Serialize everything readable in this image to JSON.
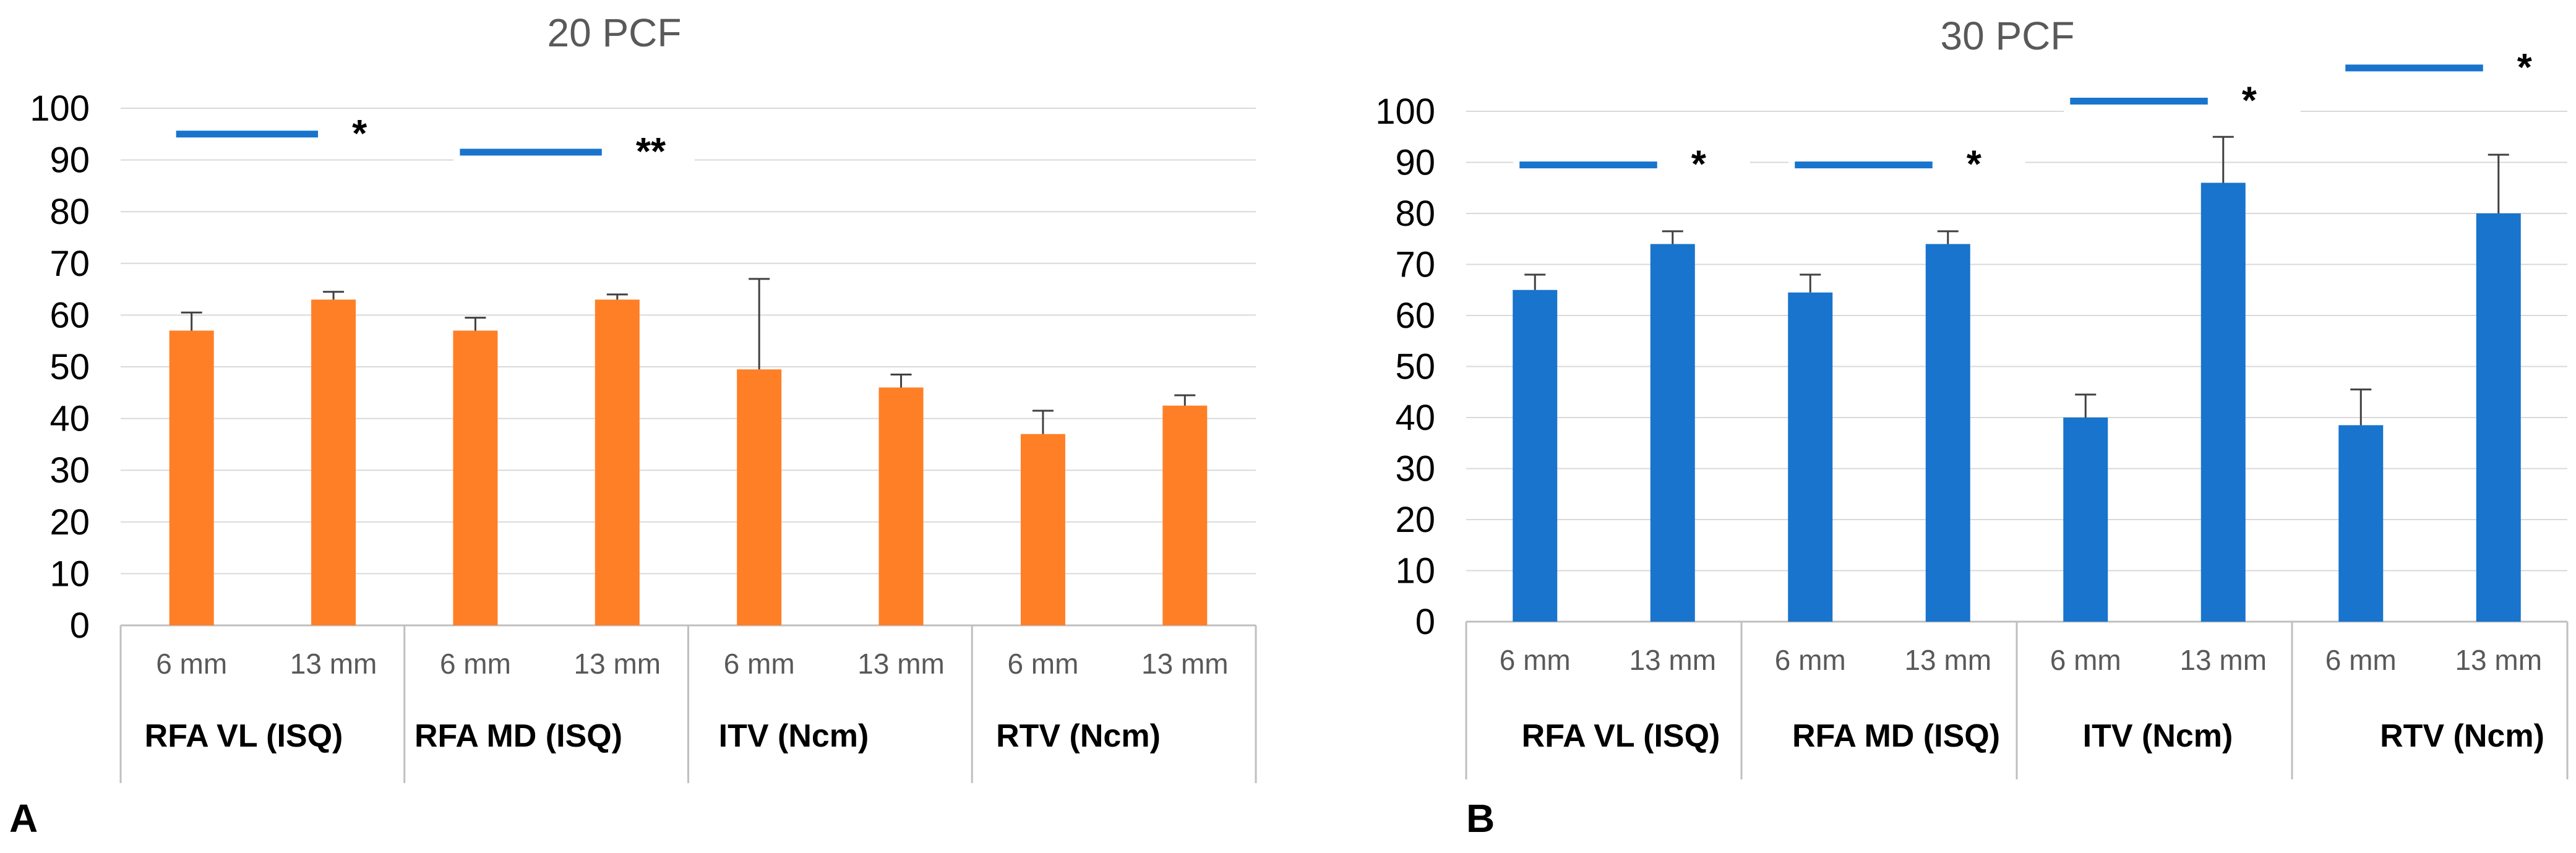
{
  "chart_data": [
    {
      "type": "bar",
      "title": "20 PCF",
      "panel_label": "A",
      "color": "#FF7F27",
      "ylim": [
        0,
        100
      ],
      "yticks": [
        "0",
        "10",
        "20",
        "30",
        "40",
        "50",
        "60",
        "70",
        "80",
        "90",
        "100"
      ],
      "categories": [
        "6 mm",
        "13 mm",
        "6 mm",
        "13 mm",
        "6 mm",
        "13 mm",
        "6 mm",
        "13 mm"
      ],
      "groups": [
        "RFA VL (ISQ)",
        "RFA MD (ISQ)",
        "ITV (Ncm)",
        "RTV (Ncm)"
      ],
      "values": [
        57,
        63,
        57,
        63,
        49.5,
        46,
        37,
        42.5
      ],
      "errors": [
        3.5,
        1.5,
        2.5,
        1,
        17.5,
        2.5,
        4.5,
        2
      ],
      "significance": [
        {
          "group": 0,
          "label": "*",
          "level": 95
        },
        {
          "group": 1,
          "label": "**",
          "level": 91.5
        }
      ]
    },
    {
      "type": "bar",
      "title": "30 PCF",
      "panel_label": "B",
      "color": "#1874CD",
      "ylim": [
        0,
        100
      ],
      "yticks": [
        "0",
        "10",
        "20",
        "30",
        "40",
        "50",
        "60",
        "70",
        "80",
        "90",
        "100"
      ],
      "categories": [
        "6 mm",
        "13 mm",
        "6 mm",
        "13 mm",
        "6 mm",
        "13 mm",
        "6 mm",
        "13 mm"
      ],
      "groups": [
        "RFA VL (ISQ)",
        "RFA MD (ISQ)",
        "ITV (Ncm)",
        "RTV (Ncm)"
      ],
      "values": [
        65,
        74,
        64.5,
        74,
        40,
        86,
        38.5,
        80
      ],
      "errors": [
        3,
        2.5,
        3.5,
        2.5,
        4.5,
        9,
        7,
        11.5
      ],
      "significance": [
        {
          "group": 0,
          "label": "*",
          "level": 89.5
        },
        {
          "group": 1,
          "label": "*",
          "level": 89.5
        },
        {
          "group": 2,
          "label": "*",
          "level": 102
        },
        {
          "group": 3,
          "label": "*",
          "level": 108.5
        }
      ]
    }
  ]
}
